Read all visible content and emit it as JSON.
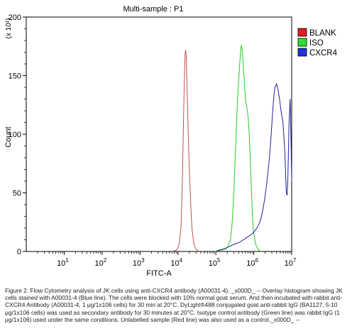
{
  "chart_data": {
    "type": "line",
    "title": "Multi-sample : P1",
    "xlabel": "FITC-A",
    "ylabel": "Count",
    "y_multiplier_label": "(x 10¹)",
    "x_scale": "log",
    "xlim": [
      1,
      10000000
    ],
    "ylim": [
      0,
      200
    ],
    "x_ticks": [
      {
        "value": 10,
        "base": "10",
        "exp": "1"
      },
      {
        "value": 100,
        "base": "10",
        "exp": "2"
      },
      {
        "value": 1000,
        "base": "10",
        "exp": "3"
      },
      {
        "value": 10000,
        "base": "10",
        "exp": "4"
      },
      {
        "value": 100000,
        "base": "10",
        "exp": "5"
      },
      {
        "value": 1000000,
        "base": "10",
        "exp": "6"
      },
      {
        "value": 10000000,
        "base": "10",
        "exp": "7"
      }
    ],
    "y_ticks": [
      0,
      50,
      100,
      150,
      200
    ],
    "legend": {
      "placement": "right"
    },
    "series": [
      {
        "name": "BLANK",
        "color": "#c0504d",
        "legend_fill": "#e02020",
        "points": [
          [
            7100,
            0
          ],
          [
            8900,
            1
          ],
          [
            10000,
            3
          ],
          [
            11000,
            8
          ],
          [
            12000,
            20
          ],
          [
            12600,
            40
          ],
          [
            13300,
            70
          ],
          [
            13800,
            100
          ],
          [
            14400,
            130
          ],
          [
            15000,
            155
          ],
          [
            15500,
            168
          ],
          [
            16000,
            172
          ],
          [
            16600,
            165
          ],
          [
            17300,
            145
          ],
          [
            18200,
            115
          ],
          [
            19500,
            80
          ],
          [
            21400,
            45
          ],
          [
            23400,
            20
          ],
          [
            26300,
            6
          ],
          [
            30200,
            2
          ],
          [
            35500,
            0
          ]
        ]
      },
      {
        "name": "ISO",
        "color": "#22cc22",
        "legend_fill": "#33dd33",
        "points": [
          [
            95500,
            0
          ],
          [
            186000,
            2
          ],
          [
            214000,
            5
          ],
          [
            240000,
            10
          ],
          [
            263000,
            20
          ],
          [
            282000,
            35
          ],
          [
            302000,
            55
          ],
          [
            324000,
            80
          ],
          [
            347000,
            105
          ],
          [
            372000,
            128
          ],
          [
            398000,
            145
          ],
          [
            427000,
            160
          ],
          [
            447000,
            170
          ],
          [
            468000,
            176
          ],
          [
            490000,
            174
          ],
          [
            513000,
            165
          ],
          [
            550000,
            150
          ],
          [
            589000,
            135
          ],
          [
            617000,
            128
          ],
          [
            661000,
            122
          ],
          [
            708000,
            115
          ],
          [
            759000,
            100
          ],
          [
            794000,
            85
          ],
          [
            851000,
            60
          ],
          [
            912000,
            35
          ],
          [
            977000,
            18
          ],
          [
            1120000,
            6
          ],
          [
            1350000,
            1
          ],
          [
            1580000,
            0
          ]
        ]
      },
      {
        "name": "CXCR4",
        "color": "#2020a0",
        "legend_fill": "#2233dd",
        "points": [
          [
            100000,
            0
          ],
          [
            117000,
            1
          ],
          [
            155000,
            2
          ],
          [
            219000,
            4
          ],
          [
            295000,
            6
          ],
          [
            363000,
            7
          ],
          [
            427000,
            8
          ],
          [
            537000,
            10
          ],
          [
            661000,
            12
          ],
          [
            813000,
            14
          ],
          [
            977000,
            16
          ],
          [
            1150000,
            19
          ],
          [
            1320000,
            22
          ],
          [
            1550000,
            28
          ],
          [
            1740000,
            36
          ],
          [
            1950000,
            45
          ],
          [
            2190000,
            58
          ],
          [
            2510000,
            75
          ],
          [
            2820000,
            95
          ],
          [
            3090000,
            115
          ],
          [
            3390000,
            133
          ],
          [
            3630000,
            140
          ],
          [
            3980000,
            143
          ],
          [
            4370000,
            138
          ],
          [
            4790000,
            130
          ],
          [
            5250000,
            120
          ],
          [
            5890000,
            110
          ],
          [
            6170000,
            100
          ],
          [
            6610000,
            85
          ],
          [
            6920000,
            65
          ],
          [
            7240000,
            50
          ],
          [
            7590000,
            48
          ],
          [
            7940000,
            62
          ],
          [
            8510000,
            110
          ],
          [
            9120000,
            130
          ],
          [
            9550000,
            100
          ],
          [
            10000000,
            60
          ]
        ]
      }
    ]
  },
  "caption": {
    "text": "Figure 2. Flow Cytometry analysis of JK cells using anti-CXCR4 antibody (A00031-4). _x000D_ -- Overlay histogram showing JK cells stained with A00031-4 (Blue line). The cells were blocked with 10% normal goat serum. And then incubated with rabbit anti-CXCR4 Antibody (A00031-4, 1 μg/1x106 cells) for 30 min at 20°C. DyLight®488 conjugated goat anti-rabbit IgG (BA1127, 5-10 μg/1x106 cells) was used as secondary antibody for 30 minutes at 20°C. Isotype control antibody (Green line) was rabbit IgG (1 μg/1x106) used under the same conditions. Unlabelled sample (Red line) was also used as a control._x000D_ --"
  }
}
